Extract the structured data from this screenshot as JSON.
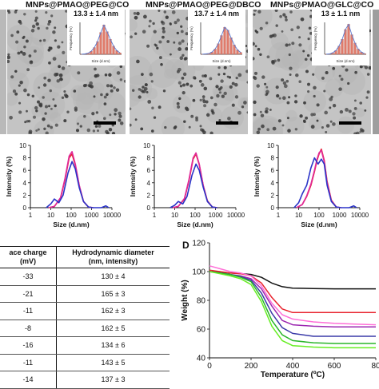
{
  "panels": [
    {
      "title": "MNPs@PMAO@PEG@CO",
      "size_label": "13.3 ± 1.4 nm",
      "hist": [
        0.5,
        1,
        3,
        8,
        18,
        34,
        58,
        78,
        60,
        40,
        22,
        10,
        4
      ],
      "hist_x_label": "Size (d.nm)",
      "hist_y_label": "Frequency (%)"
    },
    {
      "title": "MNPs@PMAO@PEG@DBCO",
      "size_label": "13.7 ± 1.4 nm",
      "hist": [
        0.5,
        1,
        2,
        6,
        14,
        28,
        50,
        72,
        64,
        44,
        25,
        12,
        5
      ],
      "hist_x_label": "Size (d.nm)",
      "hist_y_label": "Frequency (%)"
    },
    {
      "title": "MNPs@PMAO@GLC@CO",
      "size_label": "13 ± 1.1 nm",
      "hist": [
        0.5,
        1,
        4,
        10,
        22,
        40,
        66,
        80,
        52,
        30,
        14,
        6,
        2
      ],
      "hist_x_label": "Size (d.nm)",
      "hist_y_label": "Frequency (%)"
    }
  ],
  "dls": {
    "ylabel": "Intensity (%)",
    "xlabel": "Size (d.nm)",
    "yticks": [
      "0",
      "2",
      "4",
      "6",
      "8",
      "10"
    ],
    "xticks": [
      "1",
      "10",
      "100",
      "1000",
      "10000"
    ],
    "colors": {
      "red": "#e8232d",
      "magenta": "#e0289a",
      "blue": "#2b34c8"
    }
  },
  "table": {
    "headers": [
      "ace charge\n(mV)",
      "Hydrodynamic diameter\n(nm, intensity)"
    ],
    "rows": [
      [
        "-33",
        "130 ± 4"
      ],
      [
        "-21",
        "165 ± 3"
      ],
      [
        "-11",
        "162 ± 3"
      ],
      [
        "-8",
        "162 ± 5"
      ],
      [
        "-16",
        "134 ± 6"
      ],
      [
        "-11",
        "143 ± 5"
      ],
      [
        "-14",
        "137 ± 3"
      ]
    ]
  },
  "tga": {
    "label": "D",
    "ylabel": "Weight (%)",
    "xlabel": "Temperature (ºC)",
    "yticks": [
      "40",
      "60",
      "80",
      "100",
      "120"
    ],
    "xticks": [
      "0",
      "200",
      "400",
      "600",
      "80"
    ],
    "colors": [
      "#111111",
      "#e8232d",
      "#9c27b0",
      "#ff6fd8",
      "#3a3aa8",
      "#2ab52a",
      "#66ee22"
    ]
  },
  "chart_data": [
    {
      "type": "line",
      "title": "",
      "xlabel": "Size (d.nm)",
      "ylabel": "Intensity (%)",
      "xscale": "log",
      "xlim": [
        1,
        10000
      ],
      "ylim": [
        0,
        10
      ],
      "series": [
        {
          "x": [
            8,
            15,
            30,
            50,
            80,
            110,
            160,
            250,
            400,
            700,
            1200
          ],
          "y": [
            0,
            0.2,
            1.5,
            4.5,
            8.0,
            8.6,
            6.8,
            3.5,
            1.0,
            0.1,
            0
          ]
        },
        {
          "x": [
            8,
            15,
            30,
            50,
            80,
            110,
            160,
            250,
            400,
            700,
            1200
          ],
          "y": [
            0,
            0.2,
            1.6,
            4.7,
            8.3,
            9.0,
            7.0,
            3.6,
            1.0,
            0.1,
            0
          ]
        },
        {
          "x": [
            6,
            10,
            15,
            25,
            40,
            70,
            110,
            160,
            250,
            400,
            700,
            1200,
            3000,
            5000,
            7000
          ],
          "y": [
            0,
            0.6,
            1.4,
            0.8,
            2.0,
            5.6,
            7.4,
            6.2,
            3.2,
            1.0,
            0.1,
            0,
            0,
            0.3,
            0
          ]
        }
      ]
    },
    {
      "type": "line",
      "title": "",
      "xlabel": "Size (d.nm)",
      "ylabel": "Intensity (%)",
      "xscale": "log",
      "xlim": [
        1,
        10000
      ],
      "ylim": [
        0,
        10
      ],
      "series": [
        {
          "x": [
            8,
            15,
            30,
            50,
            80,
            110,
            160,
            250,
            400,
            700,
            1200
          ],
          "y": [
            0,
            0.2,
            1.4,
            4.3,
            7.8,
            8.6,
            6.9,
            3.6,
            1.1,
            0.1,
            0
          ]
        },
        {
          "x": [
            8,
            15,
            30,
            50,
            80,
            110,
            160,
            250,
            400,
            700,
            1200
          ],
          "y": [
            0,
            0.2,
            1.5,
            4.5,
            8.0,
            8.8,
            7.0,
            3.6,
            1.0,
            0.1,
            0
          ]
        },
        {
          "x": [
            6,
            10,
            15,
            25,
            40,
            70,
            110,
            160,
            250,
            400,
            700,
            1200
          ],
          "y": [
            0,
            0.4,
            1.0,
            0.6,
            1.8,
            5.2,
            7.0,
            6.0,
            3.3,
            1.0,
            0.1,
            0
          ]
        }
      ]
    },
    {
      "type": "line",
      "title": "",
      "xlabel": "Size (d.nm)",
      "ylabel": "Intensity (%)",
      "xscale": "log",
      "xlim": [
        1,
        10000
      ],
      "ylim": [
        0,
        10
      ],
      "series": [
        {
          "x": [
            8,
            15,
            25,
            40,
            60,
            80,
            100,
            130,
            180,
            250,
            400,
            700,
            1200
          ],
          "y": [
            0,
            0.5,
            1.8,
            3.6,
            5.8,
            7.6,
            8.6,
            9.4,
            7.6,
            4.2,
            1.2,
            0.1,
            0
          ]
        },
        {
          "x": [
            8,
            15,
            25,
            40,
            60,
            80,
            100,
            130,
            180,
            250,
            400,
            700,
            1200
          ],
          "y": [
            0,
            0.5,
            1.9,
            3.8,
            6.0,
            7.8,
            8.8,
            9.2,
            7.4,
            4.0,
            1.1,
            0.1,
            0
          ]
        },
        {
          "x": [
            6,
            10,
            15,
            25,
            40,
            60,
            90,
            130,
            180,
            250,
            400,
            700,
            1200,
            3000,
            5000,
            7000
          ],
          "y": [
            0,
            0.8,
            2.2,
            3.6,
            6.4,
            8.0,
            7.0,
            7.8,
            7.0,
            3.6,
            1.0,
            0.1,
            0,
            0,
            0.3,
            0
          ]
        }
      ]
    },
    {
      "type": "line",
      "title": "",
      "xlabel": "Temperature (ºC)",
      "ylabel": "Weight (%)",
      "xlim": [
        0,
        800
      ],
      "ylim": [
        40,
        120
      ],
      "series": [
        {
          "x": [
            0,
            50,
            100,
            150,
            200,
            250,
            300,
            350,
            400,
            500,
            600,
            700,
            800
          ],
          "y": [
            100,
            99.5,
            99,
            98.6,
            98,
            96,
            92,
            89.5,
            88.5,
            88.2,
            88,
            88,
            88
          ]
        },
        {
          "x": [
            0,
            50,
            100,
            150,
            200,
            250,
            300,
            350,
            400,
            500,
            600,
            700,
            800
          ],
          "y": [
            101,
            100,
            99,
            98.5,
            97,
            92,
            82,
            74,
            71.5,
            71.5,
            71.5,
            71.5,
            71.5
          ]
        },
        {
          "x": [
            0,
            50,
            100,
            150,
            200,
            250,
            300,
            350,
            400,
            500,
            600,
            700,
            800
          ],
          "y": [
            100,
            99,
            98,
            97,
            95,
            88,
            76,
            66,
            63,
            62,
            61.5,
            61.5,
            61.5
          ]
        },
        {
          "x": [
            0,
            50,
            100,
            150,
            200,
            250,
            300,
            350,
            400,
            500,
            600,
            700,
            800
          ],
          "y": [
            104,
            102,
            100,
            99,
            97,
            90,
            78,
            70,
            67,
            65,
            64,
            63.5,
            63
          ]
        },
        {
          "x": [
            0,
            50,
            100,
            150,
            200,
            250,
            300,
            350,
            400,
            500,
            600,
            700,
            800
          ],
          "y": [
            100,
            99,
            98,
            96.5,
            94,
            85,
            71,
            61,
            57,
            55,
            55,
            55,
            55
          ]
        },
        {
          "x": [
            0,
            50,
            100,
            150,
            200,
            250,
            300,
            350,
            400,
            500,
            600,
            700,
            800
          ],
          "y": [
            100,
            99,
            98,
            96,
            93,
            82,
            66,
            56,
            52,
            50.5,
            50,
            50,
            50
          ]
        },
        {
          "x": [
            0,
            50,
            100,
            150,
            200,
            250,
            300,
            350,
            400,
            500,
            600,
            700,
            800
          ],
          "y": [
            100,
            98.5,
            97,
            95,
            91,
            79,
            62,
            52,
            48.5,
            47.5,
            47,
            47,
            47
          ]
        }
      ]
    }
  ]
}
